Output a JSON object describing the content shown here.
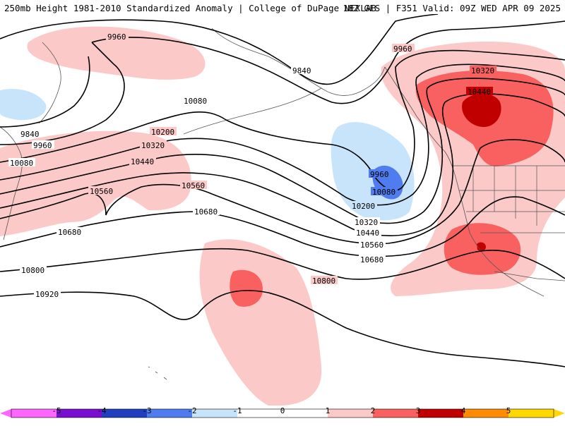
{
  "header": {
    "left": "250mb Height 1981-2010 Standardized Anomaly | College of DuPage NEXLAB",
    "right": "18Z GFS | F351 Valid: 09Z WED APR 09 2025"
  },
  "colors": {
    "neg5": "#ff66ff",
    "neg4": "#7a0ed0",
    "neg3": "#1f3fbf",
    "neg2": "#4f7df0",
    "neg1": "#c8e4fb",
    "zero": "#ffffff",
    "pos1": "#ffffff",
    "pos2": "#fcc9c9",
    "pos3": "#f96060",
    "pos4": "#c00000",
    "pos5": "#ff8c00",
    "pos6": "#ffd800"
  },
  "contour_labels": [
    "9960",
    "9840",
    "9960",
    "9840",
    "9960",
    "10080",
    "10080",
    "10200",
    "10320",
    "10440",
    "10560",
    "10560",
    "10680",
    "10680",
    "10800",
    "10800",
    "10920",
    "9960",
    "10080",
    "10200",
    "10320",
    "10440",
    "10560",
    "10680",
    "10320",
    "10440"
  ],
  "colorbar": {
    "ticks": [
      "-5",
      "-4",
      "-3",
      "-2",
      "-1",
      "0",
      "1",
      "2",
      "3",
      "4",
      "5"
    ]
  }
}
